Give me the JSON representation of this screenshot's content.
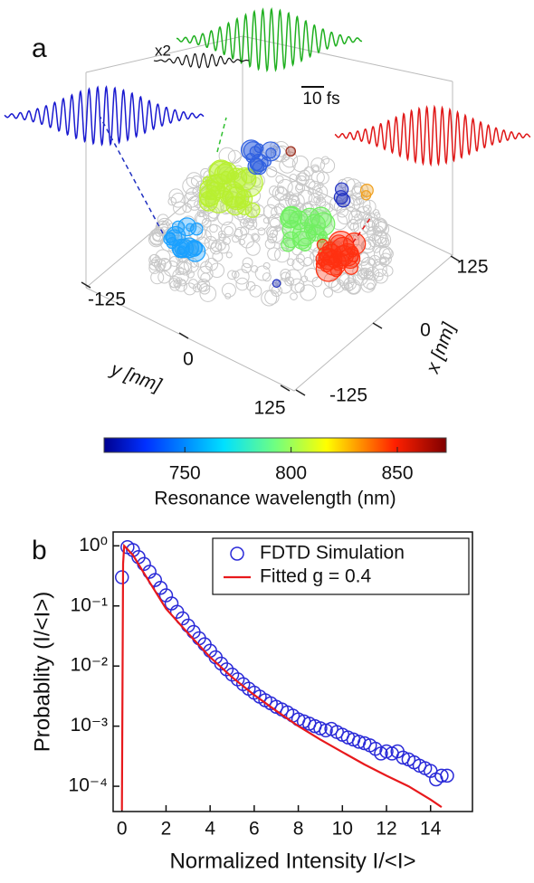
{
  "panel_a": {
    "label": "a",
    "y_axis": {
      "title": "y [nm]",
      "ticks": [
        "-125",
        "0",
        "125"
      ]
    },
    "x_axis": {
      "title": "x [nm]",
      "ticks": [
        "125",
        "0",
        "-125"
      ]
    },
    "scale_note": "x2",
    "time_bar": "10 fs",
    "colorbar": {
      "range": [
        712,
        873
      ],
      "ticks": [
        750,
        800,
        850
      ],
      "label": "Resonance wavelength (nm)"
    }
  },
  "chart_data": {
    "type": "scatter",
    "label": "b",
    "xlabel": "Normalized Intensity I/<I>",
    "ylabel": "Probablity (I/<I>)",
    "log_y": true,
    "legend": "top-right",
    "xlim": [
      -0.4,
      15.9
    ],
    "xticks": [
      0,
      2,
      4,
      6,
      8,
      10,
      12,
      14
    ],
    "ylim": [
      3.8e-05,
      1.7
    ],
    "yticks": [
      {
        "value": 1,
        "label": "10⁰"
      },
      {
        "value": 0.1,
        "label": "10⁻¹"
      },
      {
        "value": 0.01,
        "label": "10⁻²"
      },
      {
        "value": 0.001,
        "label": "10⁻³"
      },
      {
        "value": 0.0001,
        "label": "10⁻⁴"
      }
    ],
    "series": [
      {
        "name": "FDTD Simulation",
        "kind": "scatter",
        "color": "#2a2ad8",
        "x": [
          0,
          0.25,
          0.5,
          0.75,
          1,
          1.25,
          1.5,
          1.75,
          2,
          2.25,
          2.5,
          2.75,
          3,
          3.25,
          3.5,
          3.75,
          4,
          4.25,
          4.5,
          4.75,
          5,
          5.25,
          5.5,
          5.75,
          6,
          6.25,
          6.5,
          6.75,
          7,
          7.25,
          7.5,
          7.75,
          8,
          8.25,
          8.5,
          8.75,
          9,
          9.25,
          9.5,
          9.75,
          10,
          10.25,
          10.5,
          10.75,
          11,
          11.25,
          11.5,
          11.75,
          12,
          12.25,
          12.5,
          12.75,
          13,
          13.25,
          13.5,
          13.75,
          14,
          14.25,
          14.5,
          14.75
        ],
        "values": [
          0.3,
          0.95,
          0.85,
          0.65,
          0.5,
          0.37,
          0.27,
          0.2,
          0.15,
          0.11,
          0.08,
          0.062,
          0.047,
          0.037,
          0.029,
          0.023,
          0.018,
          0.014,
          0.011,
          0.0088,
          0.0072,
          0.006,
          0.005,
          0.0042,
          0.0036,
          0.0031,
          0.0027,
          0.0024,
          0.0021,
          0.0019,
          0.0017,
          0.0015,
          0.0013,
          0.0012,
          0.0011,
          0.001,
          0.00092,
          0.00085,
          0.0009,
          0.0008,
          0.00072,
          0.00065,
          0.0006,
          0.00055,
          0.00052,
          0.00048,
          0.00042,
          0.00035,
          0.00038,
          0.00035,
          0.00038,
          0.0003,
          0.00028,
          0.00025,
          0.00022,
          0.0002,
          0.00018,
          0.00013,
          0.00015,
          0.00015
        ]
      },
      {
        "name": "Fitted g = 0.4",
        "kind": "line",
        "color": "#e8191c",
        "x": [
          0,
          0.05,
          0.1,
          0.5,
          1,
          2,
          3,
          4,
          5,
          6,
          7,
          8,
          9,
          10,
          11,
          12,
          13,
          14,
          14.5
        ],
        "values": [
          4e-05,
          0.5,
          1,
          0.7,
          0.35,
          0.09,
          0.035,
          0.014,
          0.0065,
          0.0033,
          0.0018,
          0.001,
          0.0006,
          0.00037,
          0.00023,
          0.00015,
          0.0001,
          6e-05,
          4.5e-05
        ]
      }
    ]
  }
}
